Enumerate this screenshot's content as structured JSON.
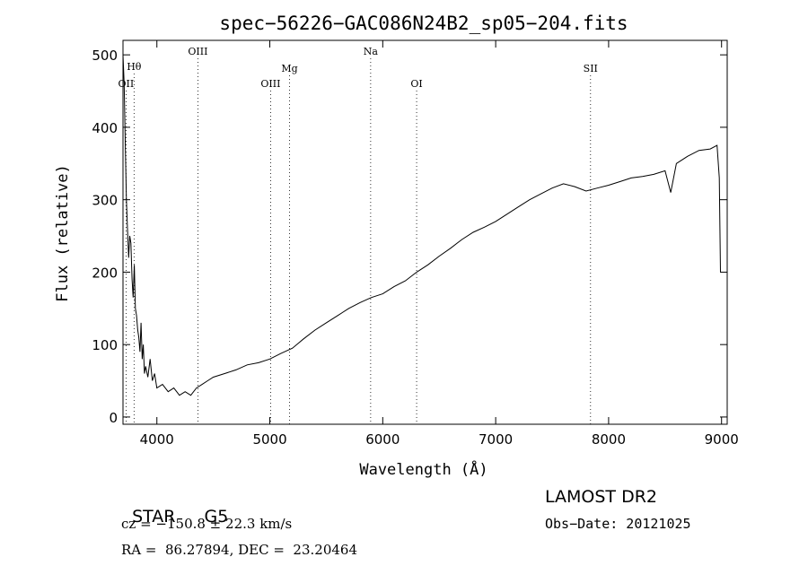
{
  "chart_data": {
    "type": "line",
    "title": "spec−56226−GAC086N24B2_sp05−204.fits",
    "xlabel": "Wavelength (Å)",
    "ylabel": "Flux (relative)",
    "xlim": [
      3700,
      9050
    ],
    "ylim": [
      -10,
      520
    ],
    "xticks": [
      4000,
      5000,
      6000,
      7000,
      8000,
      9000
    ],
    "yticks": [
      0,
      100,
      200,
      300,
      400,
      500
    ],
    "grid": false,
    "series": [
      {
        "x": [
          3700,
          3710,
          3720,
          3730,
          3740,
          3750,
          3760,
          3770,
          3780,
          3790,
          3800,
          3810,
          3820,
          3830,
          3840,
          3850,
          3860,
          3870,
          3880,
          3890,
          3900,
          3920,
          3940,
          3960,
          3980,
          4000,
          4050,
          4100,
          4150,
          4200,
          4250,
          4300,
          4350,
          4400,
          4450,
          4500,
          4600,
          4700,
          4800,
          4900,
          5000,
          5100,
          5200,
          5300,
          5400,
          5500,
          5600,
          5700,
          5800,
          5900,
          6000,
          6100,
          6200,
          6300,
          6400,
          6500,
          6600,
          6700,
          6800,
          6900,
          7000,
          7100,
          7200,
          7300,
          7400,
          7500,
          7600,
          7700,
          7800,
          7900,
          8000,
          8100,
          8200,
          8300,
          8400,
          8500,
          8550,
          8600,
          8700,
          8800,
          8900,
          8960,
          8980,
          8990
        ],
        "y": [
          500,
          460,
          380,
          300,
          260,
          220,
          250,
          240,
          190,
          165,
          210,
          150,
          140,
          120,
          110,
          90,
          130,
          80,
          100,
          60,
          70,
          55,
          80,
          50,
          60,
          40,
          45,
          35,
          40,
          30,
          35,
          30,
          40,
          45,
          50,
          55,
          60,
          65,
          72,
          75,
          80,
          88,
          95,
          108,
          120,
          130,
          140,
          150,
          158,
          165,
          170,
          180,
          188,
          200,
          210,
          222,
          233,
          245,
          255,
          262,
          270,
          280,
          290,
          300,
          308,
          316,
          322,
          318,
          312,
          316,
          320,
          325,
          330,
          332,
          335,
          340,
          310,
          350,
          360,
          368,
          370,
          375,
          330,
          200
        ]
      }
    ],
    "line_labels": [
      {
        "label": "OII",
        "x": 3727
      },
      {
        "label": "Hθ",
        "x": 3798
      },
      {
        "label": "OIII",
        "x": 4363
      },
      {
        "label": "OIII",
        "x": 5007
      },
      {
        "label": "Mg",
        "x": 5175
      },
      {
        "label": "Na",
        "x": 5893
      },
      {
        "label": "OI",
        "x": 6300
      },
      {
        "label": "SII",
        "x": 7840
      }
    ]
  },
  "info": {
    "class": "STAR",
    "subclass": "G5",
    "survey": "LAMOST DR2",
    "redshift": "cz = −150.8 ± 22.3 km/s",
    "obs_date": "Obs−Date: 20121025",
    "coords": "RA =  86.27894, DEC =  23.20464"
  }
}
